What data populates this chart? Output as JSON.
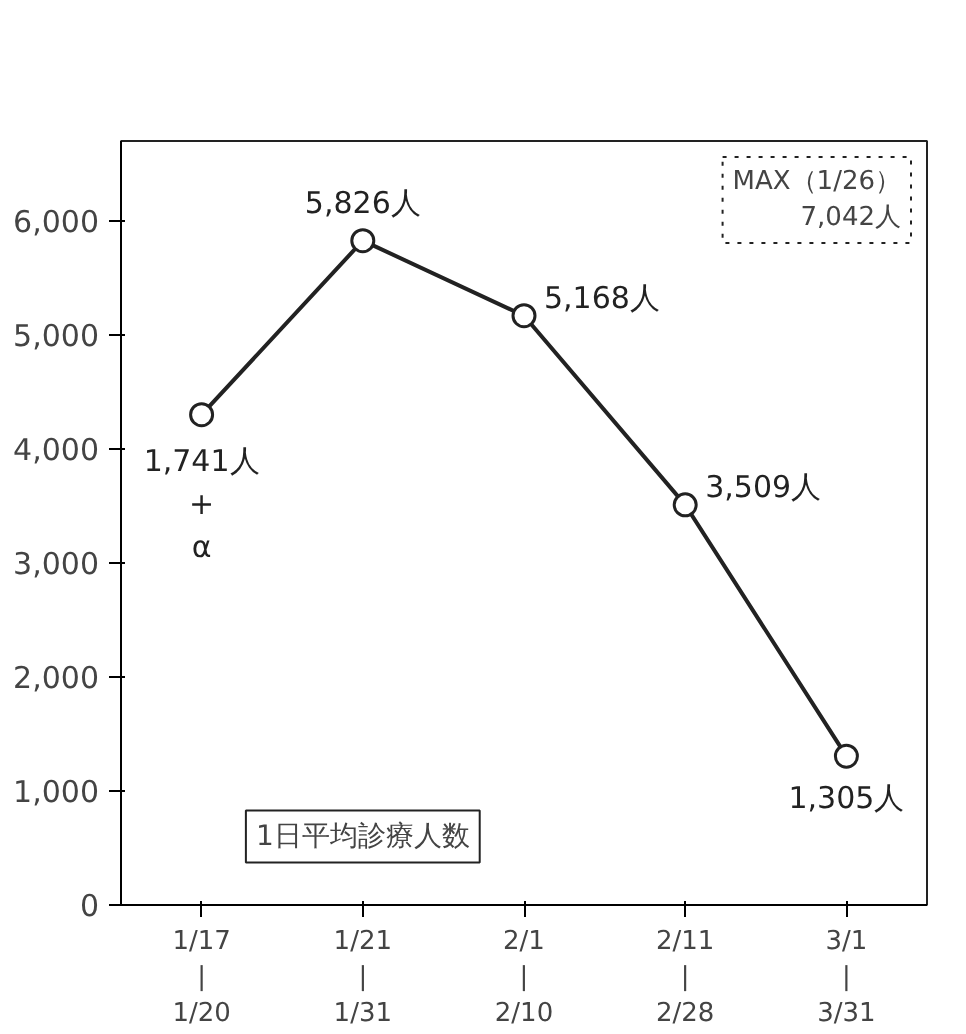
{
  "chart_data": {
    "type": "line",
    "categories": [
      "1/17\n|\n1/20",
      "1/21\n|\n1/31",
      "2/1\n|\n2/10",
      "2/11\n|\n2/28",
      "3/1\n|\n3/31"
    ],
    "series": [
      {
        "color": "#222222",
        "values": [
          4300,
          5826,
          5168,
          3509,
          1305
        ],
        "value_labels": [
          null,
          "5,826人",
          "5,168人",
          "3,509人",
          "1,305人"
        ]
      }
    ],
    "ylim": [
      0,
      6700
    ],
    "yticks": [
      {
        "value": 0,
        "label": "0"
      },
      {
        "value": 1000,
        "label": "1,000"
      },
      {
        "value": 2000,
        "label": "2,000"
      },
      {
        "value": 3000,
        "label": "3,000"
      },
      {
        "value": 4000,
        "label": "4,000"
      },
      {
        "value": 5000,
        "label": "5,000"
      },
      {
        "value": 6000,
        "label": "6,000"
      }
    ],
    "annotations": [
      "MAX（1/26）\n7,042人",
      "1日平均診療人数",
      {
        "text": "1,741人\n+\nα",
        "x": "1/17\n|\n1/20",
        "y": 4300
      }
    ],
    "marker": "circle",
    "line_style": "solid",
    "grid": false
  }
}
